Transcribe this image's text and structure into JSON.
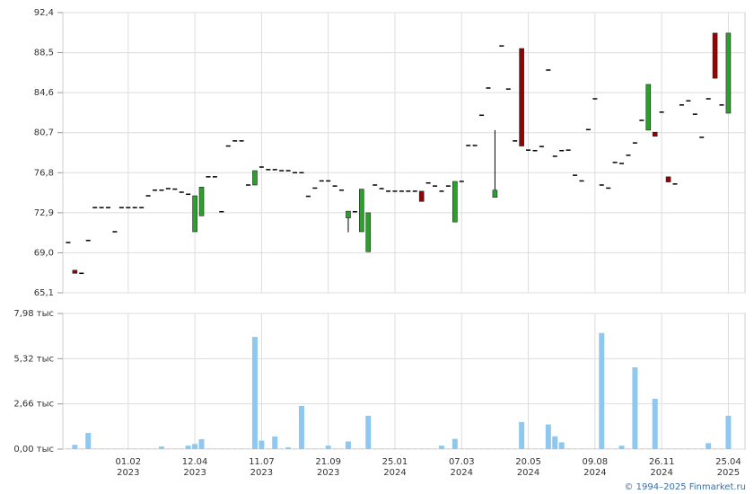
{
  "chart_data": [
    {
      "type": "candlestick",
      "open": [
        70.0,
        67.3,
        67.0,
        70.2,
        73.4,
        73.4,
        73.4,
        71.05,
        73.4,
        73.4,
        73.4,
        73.4,
        74.55,
        75.1,
        75.1,
        75.25,
        75.2,
        74.9,
        74.7,
        71.05,
        72.6,
        76.4,
        76.4,
        73.0,
        79.4,
        79.9,
        79.9,
        75.6,
        75.6,
        77.35,
        77.1,
        77.1,
        77.0,
        77.0,
        76.8,
        76.8,
        74.5,
        75.3,
        76.0,
        76.0,
        75.5,
        75.1,
        72.4,
        73.0,
        71.05,
        69.1,
        75.6,
        75.25,
        75.0,
        75.0,
        75.0,
        75.0,
        75.0,
        75.0,
        75.8,
        75.5,
        75.0,
        75.5,
        72.0,
        75.95,
        79.45,
        79.45,
        82.4,
        85.05,
        74.4,
        89.15,
        84.95,
        79.9,
        88.9,
        79.0,
        78.95,
        79.35,
        86.8,
        78.4,
        78.95,
        79.0,
        76.55,
        76.0,
        81.0,
        84.0,
        75.6,
        75.3,
        77.8,
        77.7,
        78.5,
        79.7,
        81.9,
        80.95,
        80.75,
        82.7,
        76.4,
        75.7,
        83.4,
        83.8,
        82.5,
        80.25,
        84.0,
        90.4,
        83.4,
        82.6
      ],
      "high": [
        70.0,
        67.3,
        67.0,
        70.2,
        73.4,
        73.4,
        73.4,
        71.05,
        73.4,
        73.4,
        73.4,
        73.4,
        74.55,
        75.1,
        75.1,
        75.25,
        75.2,
        74.9,
        74.7,
        74.55,
        75.4,
        76.4,
        76.4,
        73.0,
        79.4,
        79.9,
        79.9,
        75.6,
        77.0,
        77.35,
        77.1,
        77.1,
        77.0,
        77.0,
        76.8,
        76.8,
        74.5,
        75.3,
        76.0,
        76.0,
        75.5,
        75.1,
        73.05,
        73.0,
        75.2,
        72.9,
        75.6,
        75.25,
        75.0,
        75.0,
        75.0,
        75.0,
        75.0,
        75.0,
        75.8,
        75.5,
        75.0,
        75.5,
        75.95,
        75.95,
        79.45,
        79.45,
        82.4,
        85.05,
        80.95,
        89.15,
        84.95,
        79.9,
        88.9,
        79.0,
        78.95,
        79.35,
        86.8,
        78.4,
        78.95,
        79.0,
        76.55,
        76.0,
        81.0,
        84.0,
        75.6,
        75.3,
        77.8,
        77.7,
        78.5,
        79.7,
        81.9,
        85.4,
        80.75,
        82.7,
        76.4,
        75.7,
        83.4,
        83.8,
        82.5,
        80.25,
        84.0,
        90.4,
        83.4,
        90.4
      ],
      "low": [
        70.0,
        67.0,
        67.0,
        70.2,
        73.4,
        73.4,
        73.4,
        71.05,
        73.4,
        73.4,
        73.4,
        73.4,
        74.55,
        75.1,
        75.1,
        75.25,
        75.2,
        74.9,
        74.7,
        71.05,
        72.6,
        76.4,
        76.4,
        73.0,
        79.4,
        79.9,
        79.9,
        75.6,
        75.6,
        77.35,
        77.1,
        77.1,
        77.0,
        77.0,
        76.8,
        76.8,
        74.5,
        75.3,
        76.0,
        76.0,
        75.5,
        75.1,
        71.0,
        73.0,
        71.05,
        69.1,
        75.6,
        75.25,
        75.0,
        75.0,
        75.0,
        75.0,
        75.0,
        74.0,
        75.8,
        75.5,
        75.0,
        75.5,
        72.0,
        75.95,
        79.45,
        79.45,
        82.4,
        85.05,
        74.4,
        89.15,
        84.95,
        79.9,
        79.4,
        79.0,
        78.95,
        79.35,
        86.8,
        78.4,
        78.95,
        79.0,
        76.55,
        76.0,
        81.0,
        84.0,
        75.6,
        75.3,
        77.8,
        77.7,
        78.5,
        79.7,
        81.9,
        80.95,
        80.35,
        82.7,
        75.9,
        75.7,
        83.4,
        83.8,
        82.5,
        80.25,
        84.0,
        86.0,
        83.4,
        82.6
      ],
      "close": [
        70.0,
        67.0,
        67.0,
        70.2,
        73.4,
        73.4,
        73.4,
        71.05,
        73.4,
        73.4,
        73.4,
        73.4,
        74.55,
        75.1,
        75.1,
        75.25,
        75.2,
        74.9,
        74.7,
        74.55,
        75.4,
        76.4,
        76.4,
        73.0,
        79.4,
        79.9,
        79.9,
        75.6,
        77.0,
        77.35,
        77.1,
        77.1,
        77.0,
        77.0,
        76.8,
        76.8,
        74.5,
        75.3,
        76.0,
        76.0,
        75.5,
        75.1,
        73.05,
        73.0,
        75.2,
        72.9,
        75.6,
        75.25,
        75.0,
        75.0,
        75.0,
        75.0,
        75.0,
        74.0,
        75.8,
        75.5,
        75.0,
        75.5,
        75.95,
        75.95,
        79.45,
        79.45,
        82.4,
        85.05,
        75.1,
        89.15,
        84.95,
        79.9,
        79.4,
        79.0,
        78.95,
        79.35,
        86.8,
        78.4,
        78.95,
        79.0,
        76.55,
        76.0,
        81.0,
        84.0,
        75.6,
        75.3,
        77.8,
        77.7,
        78.5,
        79.7,
        81.9,
        85.4,
        80.35,
        82.7,
        75.9,
        75.7,
        83.4,
        83.8,
        82.5,
        80.25,
        84.0,
        86.0,
        83.4,
        90.4
      ],
      "up_color": "#2ca02c",
      "down_color": "#990000",
      "flat_color": "#000000",
      "ylim": [
        65.1,
        92.4
      ],
      "yticks": [
        {
          "value": 65.1,
          "label": "65,1"
        },
        {
          "value": 69.0,
          "label": "69,0"
        },
        {
          "value": 72.9,
          "label": "72,9"
        },
        {
          "value": 76.8,
          "label": "76,8"
        },
        {
          "value": 80.7,
          "label": "80,7"
        },
        {
          "value": 84.6,
          "label": "84,6"
        },
        {
          "value": 88.5,
          "label": "88,5"
        },
        {
          "value": 92.4,
          "label": "92,4"
        }
      ],
      "grid": true
    },
    {
      "type": "bar",
      "categories": [
        null,
        null,
        null,
        null,
        null,
        null,
        null,
        null,
        null,
        "01.02\n2023",
        null,
        null,
        null,
        null,
        null,
        null,
        null,
        null,
        null,
        "12.04\n2023",
        null,
        null,
        null,
        null,
        null,
        null,
        null,
        null,
        null,
        "11.07\n2023",
        null,
        null,
        null,
        null,
        null,
        null,
        null,
        null,
        null,
        "21.09\n2023",
        null,
        null,
        null,
        null,
        null,
        null,
        null,
        null,
        null,
        "25.01\n2024",
        null,
        null,
        null,
        null,
        null,
        null,
        null,
        null,
        null,
        "07.03\n2024",
        null,
        null,
        null,
        null,
        null,
        null,
        null,
        null,
        null,
        "20.05\n2024",
        null,
        null,
        null,
        null,
        null,
        null,
        null,
        null,
        null,
        "09.08\n2024",
        null,
        null,
        null,
        null,
        null,
        null,
        null,
        null,
        null,
        "26.11\n2024",
        null,
        null,
        null,
        null,
        null,
        null,
        null,
        null,
        null,
        "25.04\n2025"
      ],
      "values": [
        0.03,
        0.25,
        0.03,
        0.95,
        0.03,
        0.03,
        0.03,
        0.03,
        0.03,
        0.03,
        0.03,
        0.03,
        0.03,
        0.03,
        0.15,
        0.03,
        0.03,
        0.03,
        0.2,
        0.3,
        0.58,
        0.03,
        0.03,
        0.03,
        0.03,
        0.03,
        0.03,
        0.03,
        6.6,
        0.5,
        0.03,
        0.74,
        0.03,
        0.1,
        0.03,
        2.54,
        0.03,
        0.03,
        0.03,
        0.2,
        0.03,
        0.03,
        0.45,
        0.03,
        0.03,
        1.96,
        0.03,
        0.03,
        0.03,
        0.03,
        0.03,
        0.03,
        0.03,
        0.03,
        0.03,
        0.03,
        0.2,
        0.03,
        0.6,
        0.03,
        0.03,
        0.03,
        0.03,
        0.03,
        0.03,
        0.03,
        0.03,
        0.03,
        1.59,
        0.03,
        0.03,
        0.03,
        1.45,
        0.75,
        0.4,
        0.03,
        0.03,
        0.03,
        0.03,
        0.03,
        6.83,
        0.03,
        0.03,
        0.2,
        0.03,
        4.81,
        0.03,
        0.03,
        2.96,
        0.03,
        0.03,
        0.03,
        0.03,
        0.03,
        0.03,
        0.03,
        0.35,
        0.03,
        0.03,
        1.96
      ],
      "color": "#8ec8f0",
      "ylim": [
        0,
        7.98
      ],
      "yticks": [
        {
          "value": 0,
          "label": "0,00 тыс"
        },
        {
          "value": 2.66,
          "label": "2,66 тыс"
        },
        {
          "value": 5.32,
          "label": "5,32 тыс"
        },
        {
          "value": 7.98,
          "label": "7,98 тыс"
        }
      ],
      "grid": true
    }
  ],
  "credit": "© 1994–2025 Finmarket.ru"
}
